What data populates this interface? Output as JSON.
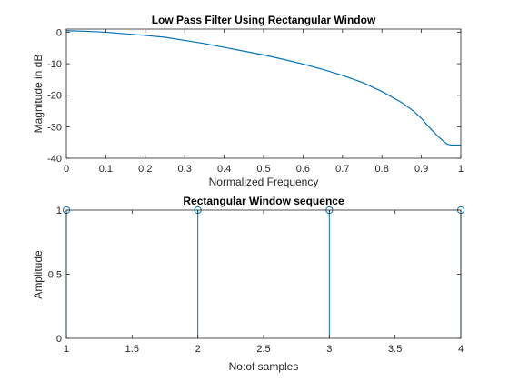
{
  "colors": {
    "series": "#0072BD",
    "axes": "#262626",
    "background": "#FFFFFF"
  },
  "chart_data": [
    {
      "type": "line",
      "title": "Low Pass Filter Using Rectangular Window",
      "xlabel": "Normalized Frequency",
      "ylabel": "Magnitude in dB",
      "xlim": [
        0,
        1
      ],
      "ylim": [
        -40,
        1
      ],
      "xticks": [
        0,
        0.1,
        0.2,
        0.3,
        0.4,
        0.5,
        0.6,
        0.7,
        0.8,
        0.9,
        1
      ],
      "xtick_labels": [
        "0",
        "0.1",
        "0.2",
        "0.3",
        "0.4",
        "0.5",
        "0.6",
        "0.7",
        "0.8",
        "0.9",
        "1"
      ],
      "yticks": [
        -40,
        -30,
        -20,
        -10,
        0
      ],
      "ytick_labels": [
        "-40",
        "-30",
        "-20",
        "-10",
        "0"
      ],
      "grid": false,
      "series": [
        {
          "x": [
            0,
            0.05,
            0.1,
            0.15,
            0.2,
            0.25,
            0.3,
            0.35,
            0.4,
            0.45,
            0.5,
            0.55,
            0.6,
            0.65,
            0.7,
            0.75,
            0.8,
            0.85,
            0.88,
            0.9,
            0.92,
            0.94,
            0.955,
            0.965,
            0.975,
            0.985,
            1
          ],
          "y": [
            0.5,
            0.3,
            0.0,
            -0.5,
            -1.0,
            -1.6,
            -2.6,
            -3.6,
            -4.8,
            -6.0,
            -7.2,
            -8.6,
            -10.1,
            -11.8,
            -13.7,
            -15.9,
            -18.8,
            -22.3,
            -25.0,
            -27.3,
            -30.2,
            -32.8,
            -34.5,
            -35.5,
            -35.8,
            -35.8,
            -35.8
          ]
        }
      ]
    },
    {
      "type": "stem",
      "title": "Rectangular Window sequence",
      "xlabel": "No:of samples",
      "ylabel": "Amplitude",
      "xlim": [
        1,
        4
      ],
      "ylim": [
        0,
        1
      ],
      "xticks": [
        1,
        1.5,
        2,
        2.5,
        3,
        3.5,
        4
      ],
      "xtick_labels": [
        "1",
        "1.5",
        "2",
        "2.5",
        "3",
        "3.5",
        "4"
      ],
      "yticks": [
        0,
        0.5,
        1
      ],
      "ytick_labels": [
        "0",
        "0.5",
        "1"
      ],
      "grid": false,
      "series": [
        {
          "x": [
            1,
            2,
            3,
            4
          ],
          "y": [
            1,
            1,
            1,
            1
          ]
        }
      ]
    }
  ]
}
